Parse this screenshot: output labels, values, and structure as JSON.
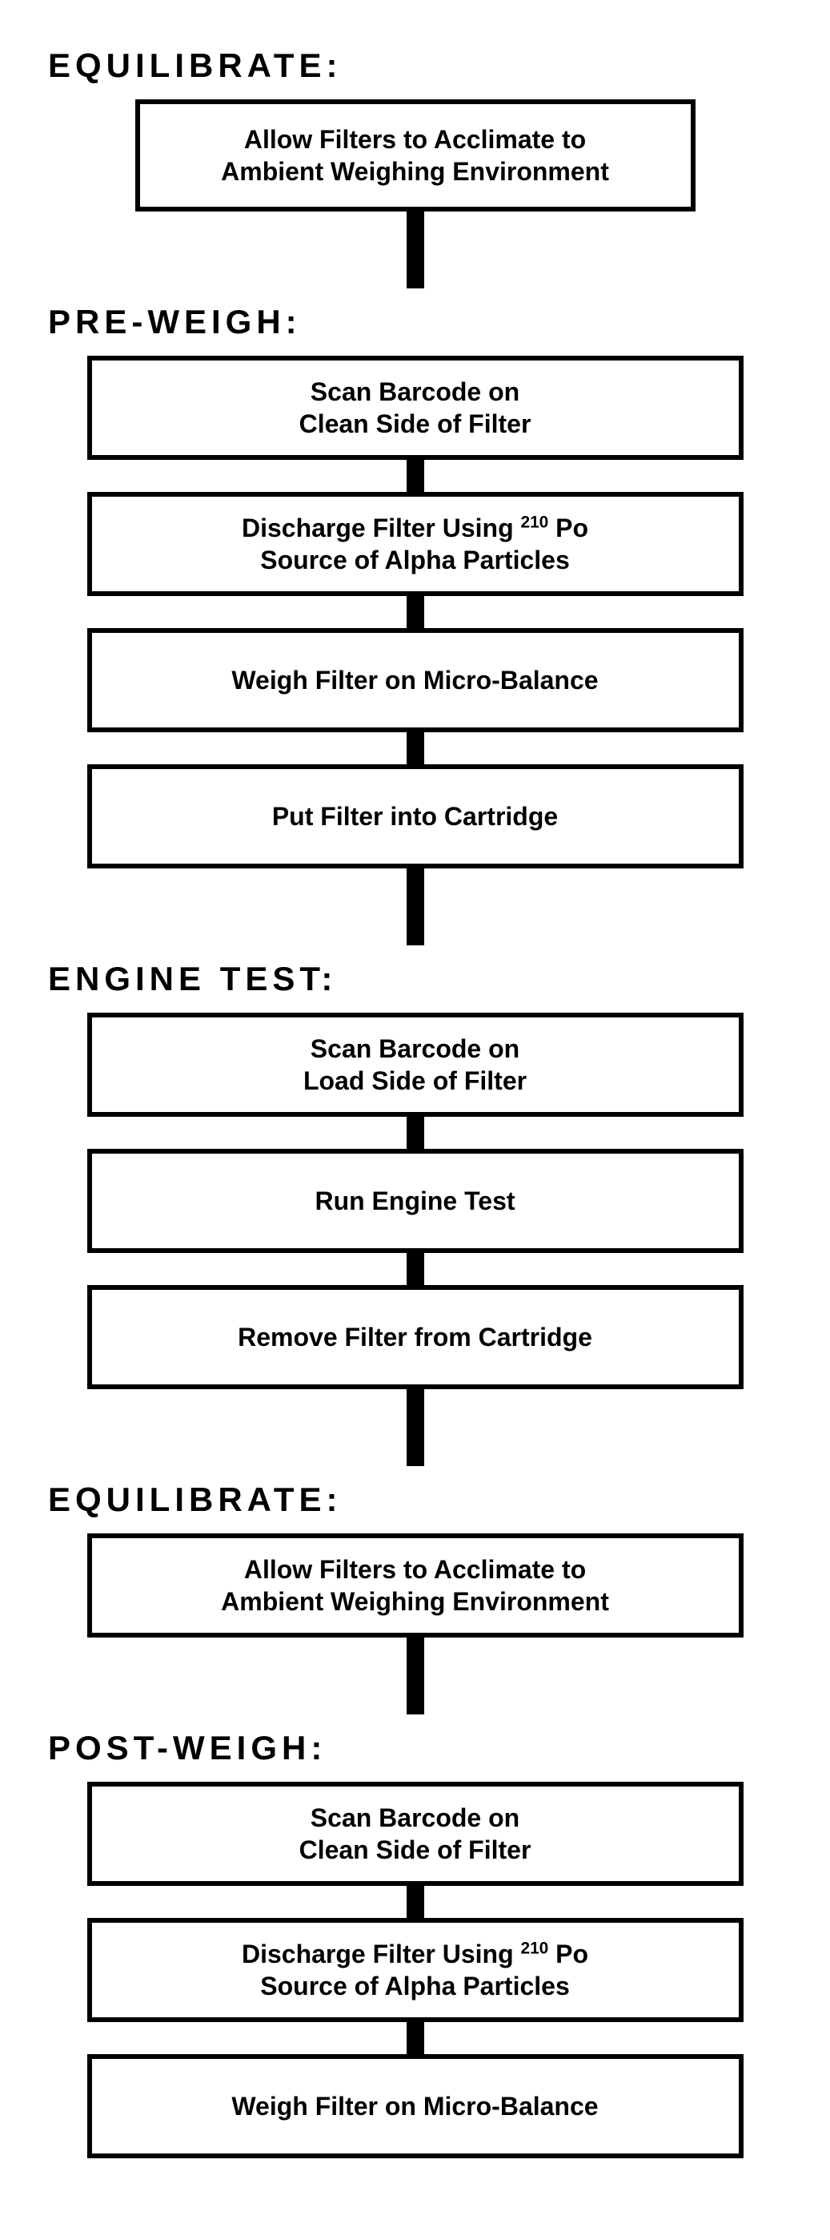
{
  "layout": {
    "section_label_fontsize": 42,
    "section_label_letter_spacing": 6,
    "node_border_width": 6,
    "node_fontsize": 32,
    "connector_width": 22,
    "connector_height_short": 40,
    "connector_height_long": 96,
    "node_width_narrow": 700,
    "node_width_wide": 820,
    "colors": {
      "border": "#000000",
      "text": "#000000",
      "background": "#ffffff",
      "connector": "#000000"
    }
  },
  "sections": {
    "equilibrate1": "EQUILIBRATE:",
    "preweigh": "PRE-WEIGH:",
    "enginetest": "ENGINE TEST:",
    "equilibrate2": "EQUILIBRATE:",
    "postweigh": "POST-WEIGH:"
  },
  "nodes": {
    "n1_l1": "Allow Filters to Acclimate to",
    "n1_l2": "Ambient Weighing Environment",
    "n2_l1": "Scan Barcode on",
    "n2_l2": "Clean Side of Filter",
    "n3_html": "Discharge Filter Using <sup>210</sup> Po<br>Source of Alpha Particles",
    "n4": "Weigh Filter on Micro-Balance",
    "n5": "Put Filter into Cartridge",
    "n6_l1": "Scan Barcode on",
    "n6_l2": "Load Side of Filter",
    "n7": "Run Engine Test",
    "n8": "Remove Filter from Cartridge",
    "n9_l1": "Allow Filters to Acclimate to",
    "n9_l2": "Ambient Weighing Environment",
    "n10_l1": "Scan Barcode on",
    "n10_l2": "Clean Side of Filter",
    "n11_html": "Discharge Filter Using <sup>210</sup> Po<br>Source of Alpha Particles",
    "n12": "Weigh Filter on Micro-Balance"
  }
}
